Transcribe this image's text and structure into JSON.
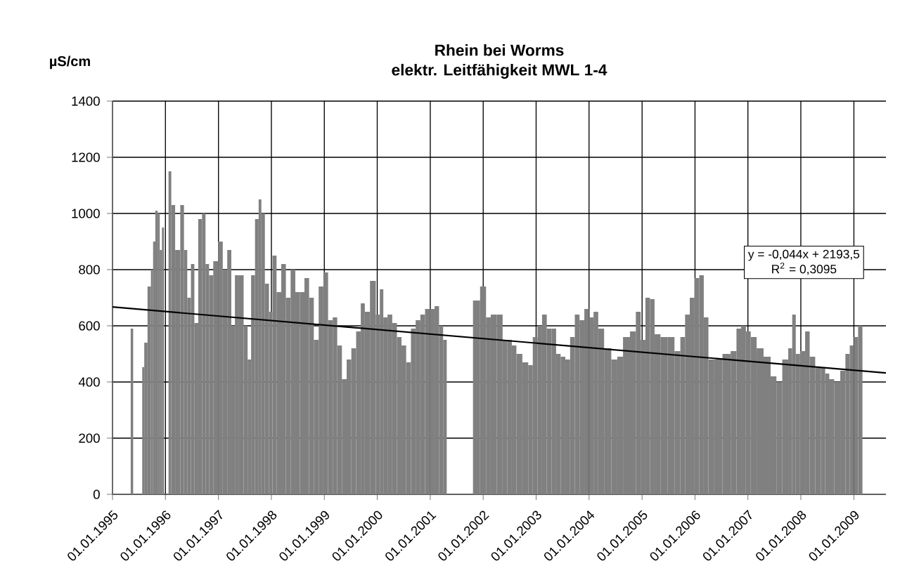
{
  "chart_data": {
    "type": "bar",
    "title": "Rhein bei Worms",
    "subtitle": "elektr. Leitfähigkeit MWL 1-4",
    "ylabel": "µS/cm",
    "annotations": [
      "y = -0,044x + 2193,5",
      "R$^{2}$ = 0,3095"
    ],
    "xlim": [
      "1995-01-01",
      "2009-08-10"
    ],
    "ylim": [
      0,
      1400
    ],
    "yticks": [
      0,
      200,
      400,
      600,
      800,
      1000,
      1200,
      1400
    ],
    "xticks": [
      {
        "value": "1995-01-01",
        "label": "01.01.1995"
      },
      {
        "value": "1996-01-01",
        "label": "01.01.1996"
      },
      {
        "value": "1997-01-01",
        "label": "01.01.1997"
      },
      {
        "value": "1998-01-01",
        "label": "01.01.1998"
      },
      {
        "value": "1999-01-01",
        "label": "01.01.1999"
      },
      {
        "value": "2000-01-01",
        "label": "01.01.2000"
      },
      {
        "value": "2001-01-01",
        "label": "01.01.2001"
      },
      {
        "value": "2002-01-01",
        "label": "01.01.2002"
      },
      {
        "value": "2003-01-01",
        "label": "01.01.2003"
      },
      {
        "value": "2004-01-01",
        "label": "01.01.2004"
      },
      {
        "value": "2005-01-01",
        "label": "01.01.2005"
      },
      {
        "value": "2006-01-01",
        "label": "01.01.2006"
      },
      {
        "value": "2007-01-01",
        "label": "01.01.2007"
      },
      {
        "value": "2008-01-01",
        "label": "01.01.2008"
      },
      {
        "value": "2009-01-01",
        "label": "01.01.2009"
      }
    ],
    "grid": true,
    "series": [
      {
        "color": "#808080",
        "x": [
          "1995-05-15",
          "1995-06-01",
          "1995-08-01",
          "1995-08-15",
          "1995-09-15",
          "1995-10-01",
          "1995-10-15",
          "1995-11-01",
          "1995-11-15",
          "1995-12-01",
          "1995-12-15",
          "1996-01-15",
          "1996-02-01",
          "1996-02-20",
          "1996-03-25",
          "1996-05-01",
          "1996-05-15",
          "1996-06-15",
          "1996-07-05",
          "1996-08-01",
          "1996-08-28",
          "1996-09-22",
          "1996-10-15",
          "1996-11-10",
          "1996-12-12",
          "1997-01-15",
          "1997-02-15",
          "1997-03-18",
          "1997-04-12",
          "1997-05-07",
          "1997-06-07",
          "1997-07-10",
          "1997-08-01",
          "1997-08-27",
          "1997-09-24",
          "1997-10-16",
          "1997-11-01",
          "1997-12-03",
          "1997-12-28",
          "1998-01-20",
          "1998-02-22",
          "1998-03-26",
          "1998-04-27",
          "1998-05-30",
          "1998-07-01",
          "1998-08-01",
          "1998-09-02",
          "1998-10-04",
          "1998-11-06",
          "1998-12-10",
          "1999-01-10",
          "1999-02-13",
          "1999-03-15",
          "1999-04-16",
          "1999-05-19",
          "1999-06-20",
          "1999-07-23",
          "1999-08-25",
          "1999-09-25",
          "1999-10-20",
          "1999-12-05",
          "2000-01-08",
          "2000-01-30",
          "2000-02-25",
          "2000-03-28",
          "2000-04-30",
          "2000-06-01",
          "2000-07-02",
          "2000-08-04",
          "2000-09-06",
          "2000-10-08",
          "2000-11-10",
          "2000-12-12",
          "2001-01-15",
          "2001-02-15",
          "2001-03-18",
          "2001-04-12",
          "2001-04-27",
          "2001-11-16",
          "2002-01-04",
          "2002-02-06",
          "2002-03-10",
          "2002-04-29",
          "2002-05-31",
          "2002-07-02",
          "2002-08-02",
          "2002-09-03",
          "2002-10-23",
          "2002-11-23",
          "2002-12-25",
          "2003-01-26",
          "2003-02-27",
          "2003-04-01",
          "2003-05-04",
          "2003-06-03",
          "2003-07-05",
          "2003-08-07",
          "2003-09-09",
          "2003-10-11",
          "2003-11-13",
          "2003-12-16",
          "2004-01-16",
          "2004-02-17",
          "2004-03-21",
          "2004-05-08",
          "2004-06-28",
          "2004-07-30",
          "2004-09-15",
          "2004-11-03",
          "2004-12-05",
          "2005-01-08",
          "2005-02-09",
          "2005-03-12",
          "2005-04-13",
          "2005-06-01",
          "2005-07-19",
          "2005-09-06",
          "2005-10-08",
          "2005-11-10",
          "2005-12-12",
          "2006-01-15",
          "2006-02-15",
          "2006-03-18",
          "2006-04-20",
          "2006-06-07",
          "2006-08-11",
          "2006-09-28",
          "2006-10-30",
          "2006-12-01",
          "2007-01-04",
          "2007-02-06",
          "2007-03-26",
          "2007-05-13",
          "2007-07-01",
          "2007-08-01",
          "2007-09-20",
          "2007-10-22",
          "2007-11-14",
          "2007-12-10",
          "2008-01-12",
          "2008-02-18",
          "2008-03-15",
          "2008-05-04",
          "2008-06-03",
          "2008-07-01",
          "2008-07-09",
          "2008-07-26",
          "2008-09-10",
          "2008-10-18",
          "2008-11-20",
          "2008-12-17",
          "2009-01-15",
          "2009-02-14"
        ],
        "values": [
          590,
          null,
          453,
          540,
          740,
          800,
          900,
          1010,
          1000,
          870,
          950,
          null,
          1150,
          1030,
          870,
          1030,
          870,
          700,
          820,
          610,
          980,
          1000,
          820,
          780,
          830,
          900,
          800,
          870,
          600,
          780,
          780,
          600,
          480,
          780,
          980,
          1050,
          1000,
          750,
          650,
          850,
          720,
          820,
          700,
          800,
          720,
          720,
          770,
          700,
          550,
          740,
          790,
          620,
          630,
          530,
          410,
          480,
          520,
          580,
          680,
          650,
          760,
          640,
          730,
          630,
          640,
          610,
          560,
          530,
          470,
          590,
          620,
          640,
          660,
          660,
          670,
          600,
          550,
          null,
          690,
          740,
          630,
          640,
          640,
          550,
          550,
          530,
          500,
          470,
          460,
          560,
          600,
          640,
          590,
          590,
          500,
          490,
          480,
          560,
          640,
          620,
          660,
          630,
          650,
          590,
          520,
          480,
          490,
          560,
          580,
          650,
          550,
          700,
          695,
          570,
          560,
          560,
          510,
          560,
          640,
          700,
          770,
          780,
          630,
          480,
          480,
          500,
          510,
          590,
          600,
          580,
          560,
          520,
          490,
          420,
          400,
          480,
          520,
          640,
          500,
          510,
          580,
          490,
          450,
          450,
          430,
          null,
          410,
          400,
          440,
          500,
          530,
          560,
          600
        ]
      },
      {
        "type": "line",
        "color": "#000000",
        "x": [
          "1995-01-01",
          "2009-08-10"
        ],
        "values": [
          667,
          432
        ]
      }
    ]
  }
}
